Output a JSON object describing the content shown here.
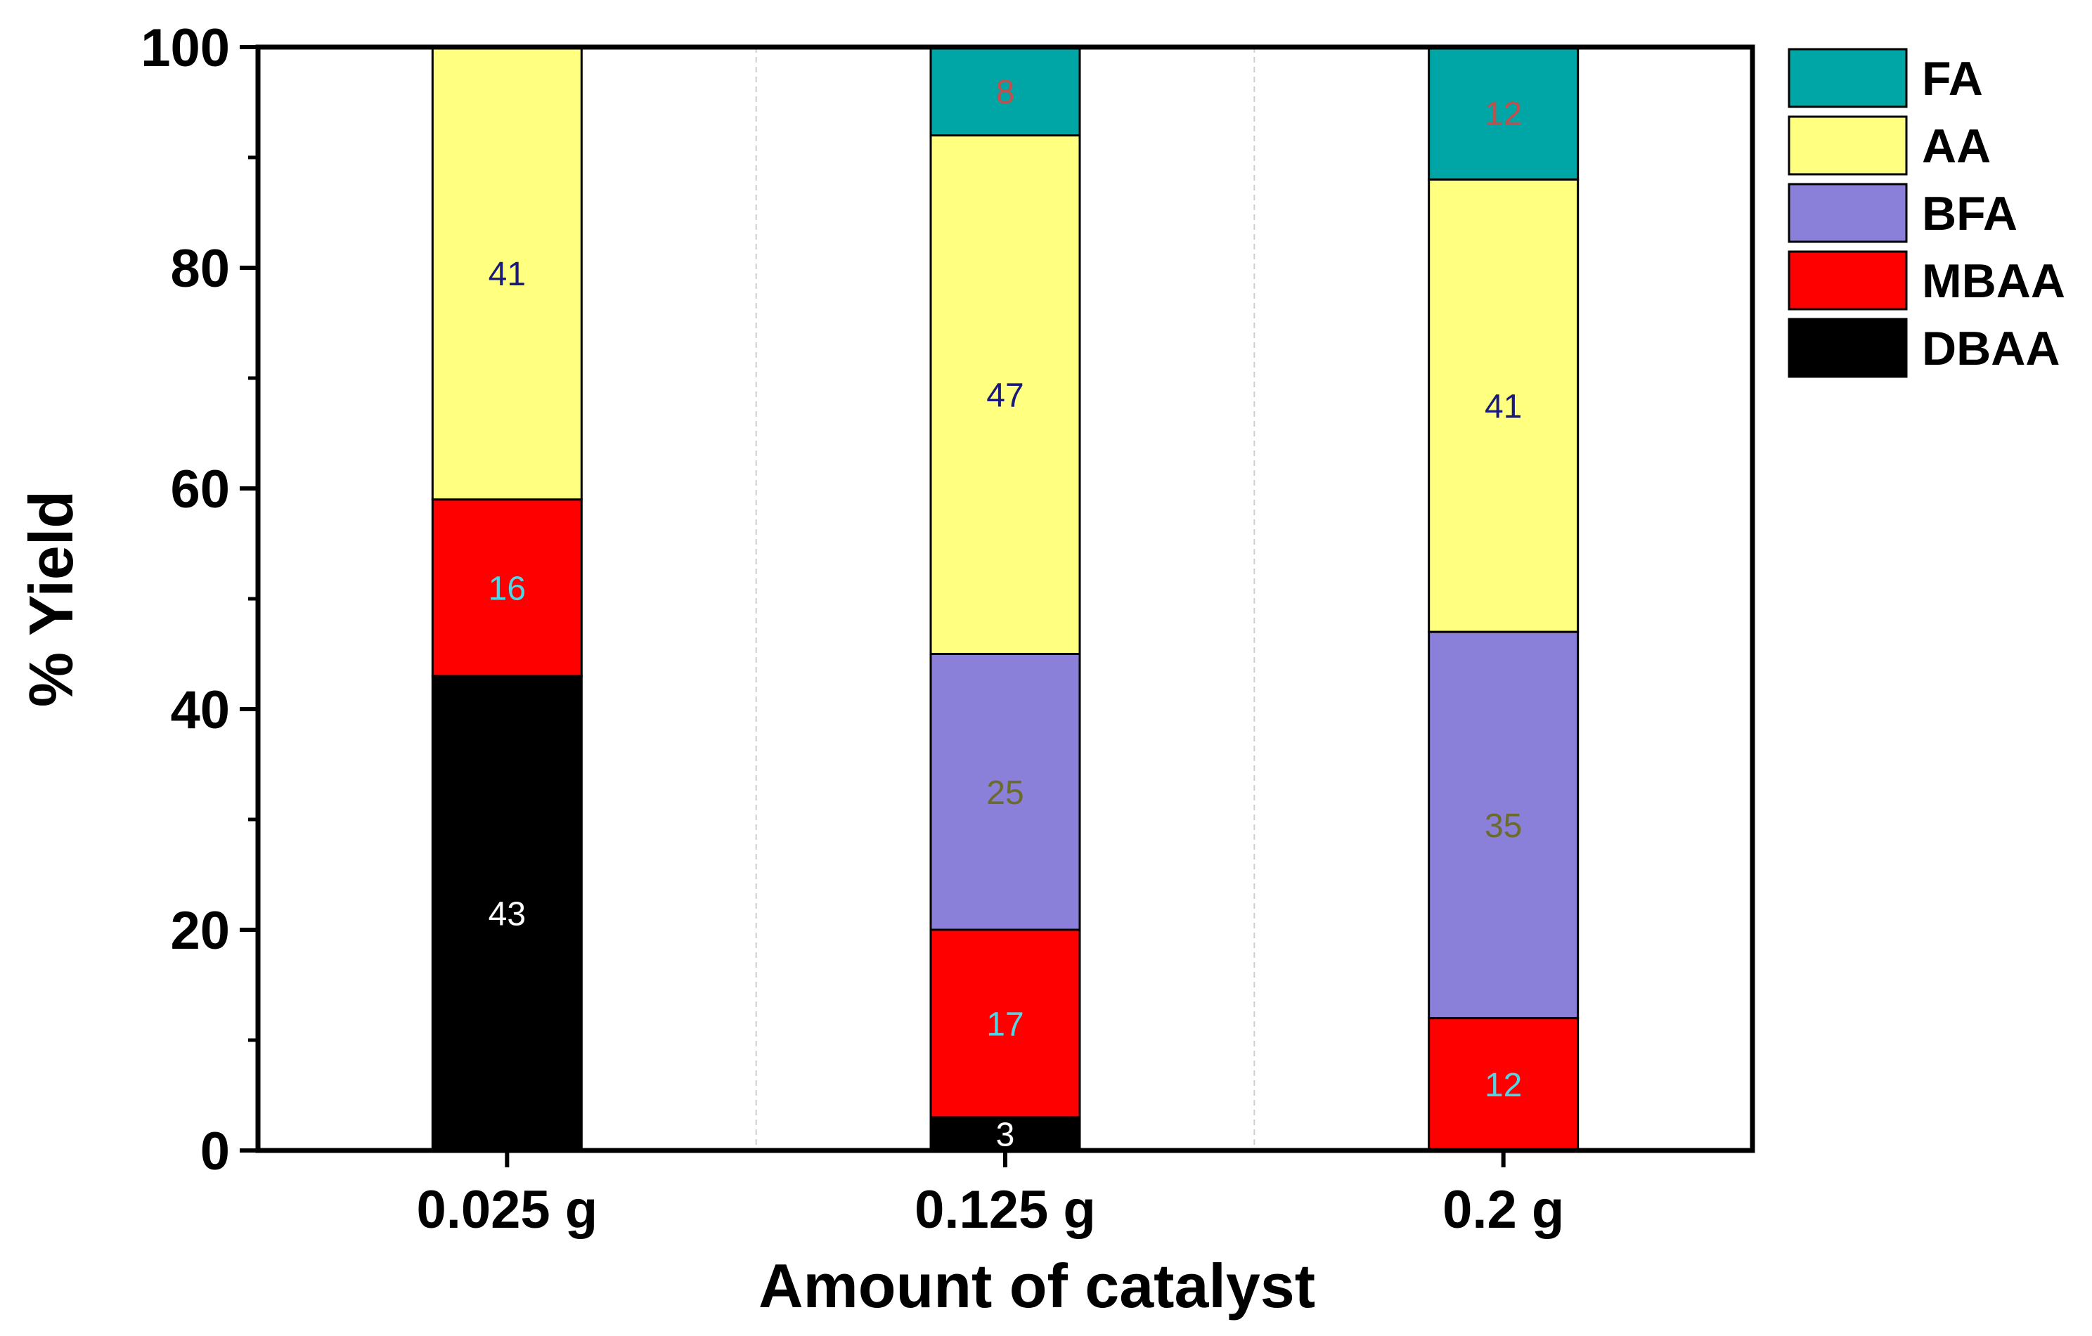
{
  "chart_data": {
    "type": "bar",
    "stacked": true,
    "xlabel": "Amount of catalyst",
    "ylabel": "% Yield",
    "ylim": [
      0,
      100
    ],
    "yticks": [
      0,
      20,
      40,
      60,
      80,
      100
    ],
    "categories": [
      "0.025 g",
      "0.125 g",
      "0.2 g"
    ],
    "series": [
      {
        "name": "DBAA",
        "color": "#000000",
        "label_color": "#ffffff",
        "values": [
          43,
          3,
          0
        ]
      },
      {
        "name": "MBAA",
        "color": "#ff0000",
        "label_color": "#4fd6e6",
        "values": [
          16,
          17,
          12
        ]
      },
      {
        "name": "BFA",
        "color": "#8a7fd9",
        "label_color": "#6b6b2a",
        "values": [
          0,
          25,
          35
        ]
      },
      {
        "name": "AA",
        "color": "#ffff80",
        "label_color": "#1a1a7a",
        "values": [
          41,
          47,
          41
        ]
      },
      {
        "name": "FA",
        "color": "#00a6a6",
        "label_color": "#c0504d",
        "values": [
          0,
          8,
          12
        ]
      }
    ],
    "legend": {
      "position": "top-right",
      "order": [
        "FA",
        "AA",
        "BFA",
        "MBAA",
        "DBAA"
      ]
    },
    "grid": "vertical dashed separators between categories"
  }
}
